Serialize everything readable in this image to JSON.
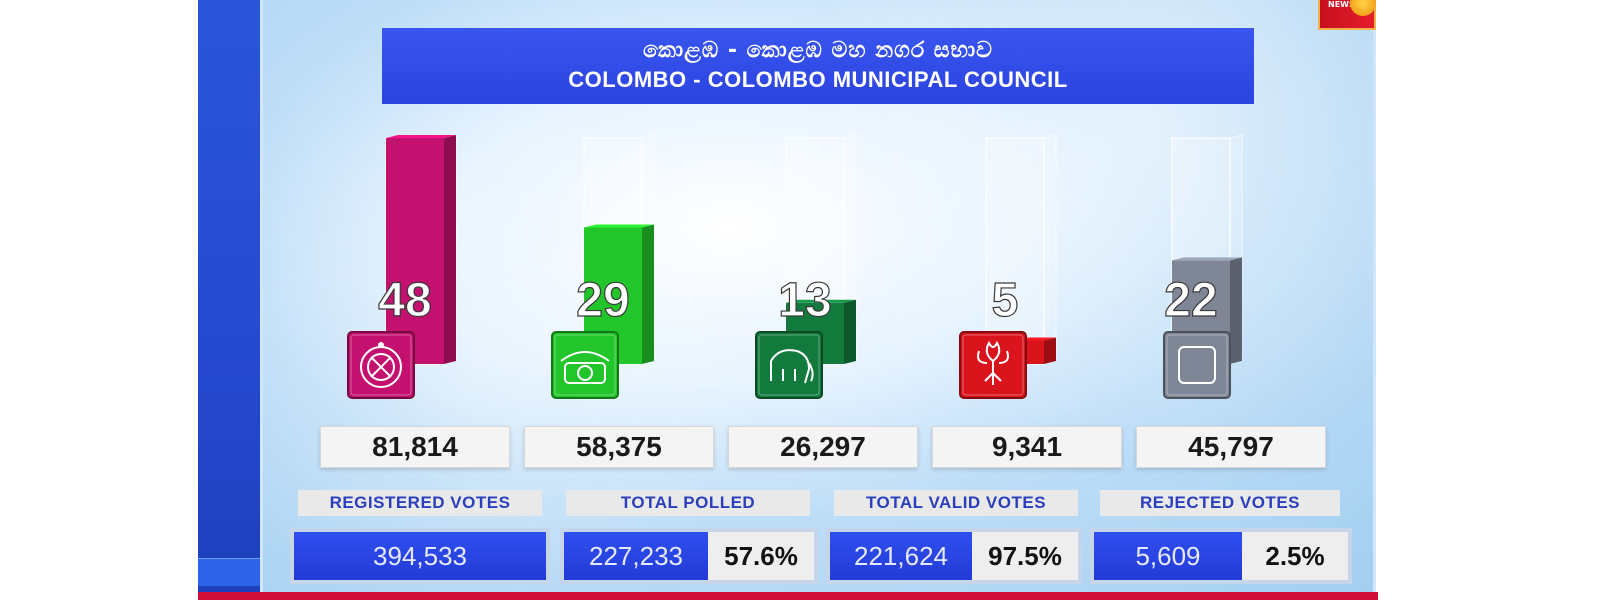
{
  "header": {
    "title_si": "කොළඹ - කොළඹ මහ නගර සභාව",
    "title_en": "COLOMBO - COLOMBO MUNICIPAL COUNCIL",
    "badge": "NEWS"
  },
  "chart_data": {
    "type": "bar",
    "categories": [
      "compass",
      "telephone",
      "elephant",
      "lotus-bud",
      "box"
    ],
    "values": [
      48,
      29,
      13,
      5,
      22
    ],
    "votes": [
      "81,814",
      "58,375",
      "26,297",
      "9,341",
      "45,797"
    ],
    "colors": [
      "#c4106e",
      "#22c52a",
      "#127a3c",
      "#d9141c",
      "#7f8797"
    ],
    "ylim": [
      0,
      48
    ],
    "grid": false
  },
  "parties": [
    {
      "icon": "compass-icon",
      "color": "#c4106e"
    },
    {
      "icon": "telephone-icon",
      "color": "#22c52a"
    },
    {
      "icon": "elephant-icon",
      "color": "#127a3c"
    },
    {
      "icon": "lotus-bud-icon",
      "color": "#d9141c"
    },
    {
      "icon": "box-icon",
      "color": "#7f8797"
    }
  ],
  "stats": {
    "registered": {
      "label": "REGISTERED VOTES",
      "value": "394,533"
    },
    "polled": {
      "label": "TOTAL POLLED",
      "value": "227,233",
      "pct": "57.6%"
    },
    "valid": {
      "label": "TOTAL VALID VOTES",
      "value": "221,624",
      "pct": "97.5%"
    },
    "rejected": {
      "label": "REJECTED VOTES",
      "value": "5,609",
      "pct": "2.5%"
    }
  }
}
